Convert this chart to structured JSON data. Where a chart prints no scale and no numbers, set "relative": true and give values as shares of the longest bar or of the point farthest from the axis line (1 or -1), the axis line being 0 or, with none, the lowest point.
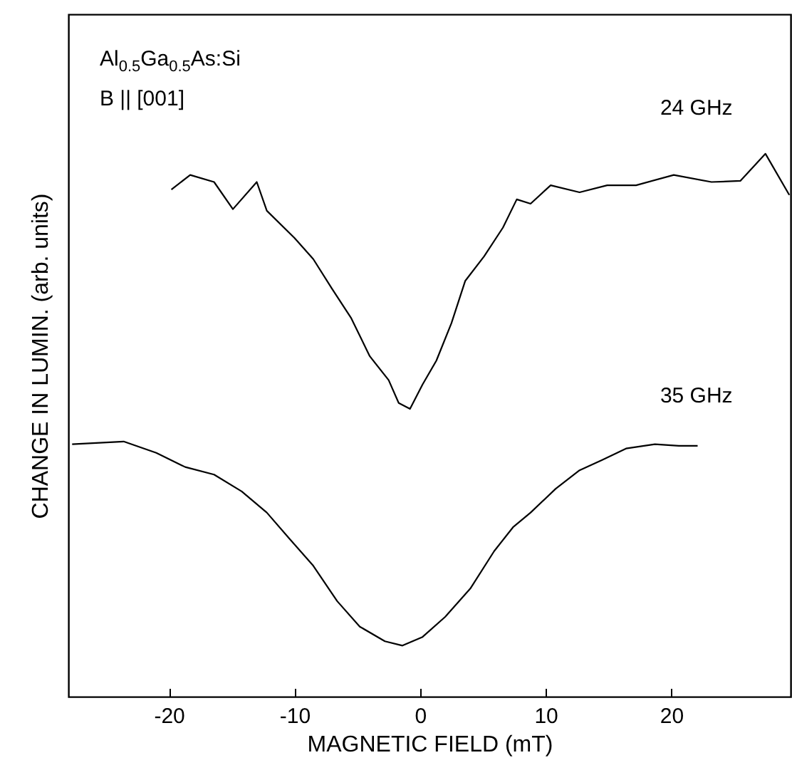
{
  "chart_data": {
    "type": "line",
    "relative": true,
    "xlabel": "MAGNETIC FIELD (mT)",
    "ylabel": "CHANGE IN LUMIN. (arb. units)",
    "xlim": [
      -28,
      29.5
    ],
    "xticks": [
      -20,
      -10,
      0,
      10,
      20
    ],
    "grid": false,
    "marker": "none",
    "line_style": "solid",
    "annotations": [
      "Al$_{0.5}$Ga$_{0.5}$As:Si",
      "B || [001]"
    ],
    "series": [
      {
        "name": "24 GHz",
        "color": "#000000",
        "x": [
          -19.8,
          -18.3,
          -16.4,
          -14.9,
          -13.0,
          -12.2,
          -10.0,
          -8.5,
          -7.0,
          -5.5,
          -4.0,
          -2.5,
          -1.7,
          -0.8,
          0.2,
          1.3,
          2.5,
          3.6,
          5.1,
          6.6,
          7.7,
          8.8,
          10.4,
          12.7,
          14.9,
          17.2,
          20.2,
          23.2,
          25.5,
          27.5,
          29.4
        ],
        "values": [
          0.934,
          0.961,
          0.948,
          0.898,
          0.948,
          0.895,
          0.845,
          0.806,
          0.751,
          0.698,
          0.627,
          0.583,
          0.541,
          0.53,
          0.575,
          0.619,
          0.688,
          0.766,
          0.811,
          0.864,
          0.916,
          0.908,
          0.942,
          0.929,
          0.942,
          0.942,
          0.961,
          0.948,
          0.95,
          1.0,
          0.924
        ]
      },
      {
        "name": "35 GHz",
        "color": "#000000",
        "x": [
          -27.7,
          -23.6,
          -21.0,
          -18.7,
          -16.4,
          -14.2,
          -12.2,
          -10.4,
          -8.5,
          -6.6,
          -4.8,
          -2.8,
          -1.4,
          0.2,
          2.0,
          4.0,
          5.9,
          7.4,
          8.8,
          10.8,
          12.7,
          14.5,
          16.4,
          18.7,
          20.6,
          22.1
        ],
        "values": [
          0.465,
          0.47,
          0.449,
          0.423,
          0.409,
          0.378,
          0.339,
          0.291,
          0.241,
          0.176,
          0.129,
          0.102,
          0.094,
          0.11,
          0.147,
          0.199,
          0.268,
          0.312,
          0.339,
          0.383,
          0.417,
          0.436,
          0.457,
          0.465,
          0.462,
          0.462
        ]
      }
    ]
  }
}
